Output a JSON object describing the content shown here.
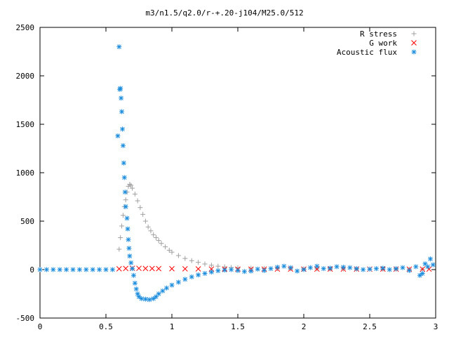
{
  "chart_data": {
    "type": "scatter",
    "title": "m3/n1.5/q2.0/r-+.20-j104/M25.0/512",
    "xlabel": "",
    "ylabel": "",
    "xlim": [
      0,
      3
    ],
    "ylim": [
      -500,
      2500
    ],
    "x_ticks": [
      0,
      0.5,
      1,
      1.5,
      2,
      2.5,
      3
    ],
    "x_tick_labels": [
      "0",
      "0.5",
      "1",
      "1.5",
      "2",
      "2.5",
      "3"
    ],
    "y_ticks": [
      -500,
      0,
      500,
      1000,
      1500,
      2000,
      2500
    ],
    "y_tick_labels": [
      "-500",
      "0",
      "500",
      "1000",
      "1500",
      "2000",
      "2500"
    ],
    "grid": false,
    "legend_position": "top-right",
    "series": [
      {
        "name": "R stress",
        "marker": "plus",
        "color": "#a0a0a0",
        "points": [
          [
            0.6,
            210
          ],
          [
            0.61,
            330
          ],
          [
            0.62,
            450
          ],
          [
            0.63,
            560
          ],
          [
            0.64,
            650
          ],
          [
            0.65,
            720
          ],
          [
            0.66,
            800
          ],
          [
            0.67,
            860
          ],
          [
            0.68,
            880
          ],
          [
            0.69,
            870
          ],
          [
            0.7,
            840
          ],
          [
            0.72,
            780
          ],
          [
            0.74,
            710
          ],
          [
            0.76,
            640
          ],
          [
            0.78,
            570
          ],
          [
            0.8,
            500
          ],
          [
            0.82,
            440
          ],
          [
            0.84,
            400
          ],
          [
            0.86,
            360
          ],
          [
            0.88,
            330
          ],
          [
            0.9,
            300
          ],
          [
            0.92,
            270
          ],
          [
            0.95,
            235
          ],
          [
            0.98,
            200
          ],
          [
            1.0,
            180
          ],
          [
            1.05,
            145
          ],
          [
            1.1,
            115
          ],
          [
            1.15,
            92
          ],
          [
            1.2,
            75
          ],
          [
            1.25,
            58
          ],
          [
            1.3,
            45
          ],
          [
            1.35,
            35
          ],
          [
            1.4,
            28
          ],
          [
            1.45,
            22
          ],
          [
            1.5,
            18
          ],
          [
            1.6,
            14
          ],
          [
            1.7,
            12
          ],
          [
            1.8,
            10
          ],
          [
            1.9,
            9
          ],
          [
            2.0,
            8
          ],
          [
            2.1,
            7
          ],
          [
            2.2,
            6
          ],
          [
            2.3,
            6
          ],
          [
            2.4,
            5
          ],
          [
            2.5,
            5
          ],
          [
            2.6,
            4
          ],
          [
            2.7,
            4
          ],
          [
            2.8,
            3
          ],
          [
            2.9,
            3
          ]
        ]
      },
      {
        "name": "G work",
        "marker": "cross",
        "color": "#ff0000",
        "points": [
          [
            0.6,
            8
          ],
          [
            0.65,
            12
          ],
          [
            0.7,
            14
          ],
          [
            0.75,
            13
          ],
          [
            0.8,
            12
          ],
          [
            0.85,
            11
          ],
          [
            0.9,
            10
          ],
          [
            1.0,
            9
          ],
          [
            1.1,
            8
          ],
          [
            1.2,
            7
          ],
          [
            1.3,
            6
          ],
          [
            1.4,
            5
          ],
          [
            1.5,
            5
          ],
          [
            1.6,
            5
          ],
          [
            1.7,
            5
          ],
          [
            1.8,
            5
          ],
          [
            1.9,
            5
          ],
          [
            2.0,
            5
          ],
          [
            2.1,
            5
          ],
          [
            2.2,
            5
          ],
          [
            2.3,
            5
          ],
          [
            2.4,
            5
          ],
          [
            2.5,
            5
          ],
          [
            2.6,
            5
          ],
          [
            2.7,
            5
          ],
          [
            2.8,
            5
          ],
          [
            2.9,
            5
          ],
          [
            2.95,
            5
          ]
        ]
      },
      {
        "name": "Acoustic flux",
        "marker": "star",
        "color": "#1a8cdc",
        "points": [
          [
            0.0,
            0
          ],
          [
            0.05,
            0
          ],
          [
            0.1,
            0
          ],
          [
            0.15,
            0
          ],
          [
            0.2,
            0
          ],
          [
            0.25,
            0
          ],
          [
            0.3,
            0
          ],
          [
            0.35,
            0
          ],
          [
            0.4,
            0
          ],
          [
            0.45,
            0
          ],
          [
            0.5,
            0
          ],
          [
            0.55,
            0
          ],
          [
            0.59,
            1380
          ],
          [
            0.6,
            2300
          ],
          [
            0.605,
            1860
          ],
          [
            0.61,
            1870
          ],
          [
            0.615,
            1770
          ],
          [
            0.62,
            1630
          ],
          [
            0.625,
            1450
          ],
          [
            0.63,
            1280
          ],
          [
            0.635,
            1100
          ],
          [
            0.64,
            950
          ],
          [
            0.645,
            800
          ],
          [
            0.65,
            650
          ],
          [
            0.66,
            530
          ],
          [
            0.665,
            420
          ],
          [
            0.67,
            310
          ],
          [
            0.675,
            220
          ],
          [
            0.68,
            140
          ],
          [
            0.69,
            70
          ],
          [
            0.7,
            10
          ],
          [
            0.71,
            -60
          ],
          [
            0.72,
            -140
          ],
          [
            0.73,
            -200
          ],
          [
            0.74,
            -250
          ],
          [
            0.75,
            -280
          ],
          [
            0.77,
            -300
          ],
          [
            0.8,
            -305
          ],
          [
            0.83,
            -310
          ],
          [
            0.86,
            -300
          ],
          [
            0.88,
            -280
          ],
          [
            0.9,
            -250
          ],
          [
            0.93,
            -220
          ],
          [
            0.96,
            -190
          ],
          [
            1.0,
            -160
          ],
          [
            1.05,
            -130
          ],
          [
            1.1,
            -100
          ],
          [
            1.15,
            -75
          ],
          [
            1.2,
            -55
          ],
          [
            1.25,
            -40
          ],
          [
            1.3,
            -25
          ],
          [
            1.35,
            -12
          ],
          [
            1.4,
            -5
          ],
          [
            1.45,
            0
          ],
          [
            1.5,
            -10
          ],
          [
            1.55,
            -20
          ],
          [
            1.6,
            -15
          ],
          [
            1.65,
            5
          ],
          [
            1.7,
            -10
          ],
          [
            1.75,
            10
          ],
          [
            1.8,
            25
          ],
          [
            1.85,
            35
          ],
          [
            1.9,
            20
          ],
          [
            1.95,
            -15
          ],
          [
            2.0,
            0
          ],
          [
            2.05,
            20
          ],
          [
            2.1,
            35
          ],
          [
            2.15,
            10
          ],
          [
            2.2,
            15
          ],
          [
            2.25,
            30
          ],
          [
            2.3,
            25
          ],
          [
            2.35,
            20
          ],
          [
            2.4,
            10
          ],
          [
            2.45,
            0
          ],
          [
            2.5,
            5
          ],
          [
            2.55,
            10
          ],
          [
            2.6,
            15
          ],
          [
            2.65,
            0
          ],
          [
            2.7,
            10
          ],
          [
            2.75,
            20
          ],
          [
            2.8,
            -10
          ],
          [
            2.85,
            30
          ],
          [
            2.88,
            -60
          ],
          [
            2.9,
            -40
          ],
          [
            2.92,
            60
          ],
          [
            2.94,
            30
          ],
          [
            2.96,
            110
          ],
          [
            2.98,
            50
          ]
        ]
      }
    ]
  }
}
